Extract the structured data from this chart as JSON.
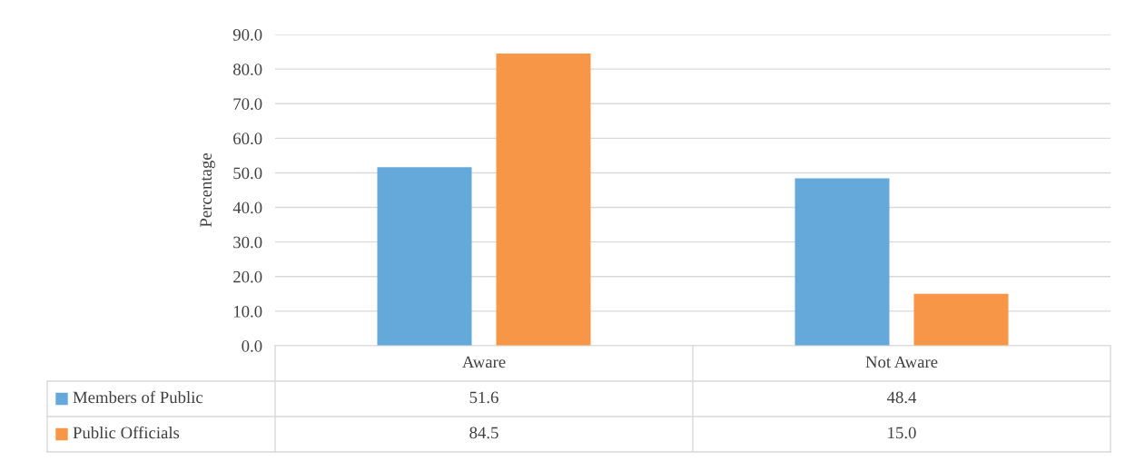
{
  "chart_data": {
    "type": "bar",
    "ylabel": "Percentage",
    "categories": [
      "Aware",
      "Not Aware"
    ],
    "series": [
      {
        "name": "Members of Public",
        "color": "#65a9db",
        "values": [
          51.6,
          48.4
        ],
        "value_labels": [
          "51.6",
          "48.4"
        ]
      },
      {
        "name": "Public Officials",
        "color": "#f79646",
        "values": [
          84.5,
          15.0
        ],
        "value_labels": [
          "84.5",
          "15.0"
        ]
      }
    ],
    "ylim": [
      0,
      90
    ],
    "yticks": [
      {
        "value": 0,
        "label": "0.0"
      },
      {
        "value": 10,
        "label": "10.0"
      },
      {
        "value": 20,
        "label": "20.0"
      },
      {
        "value": 30,
        "label": "30.0"
      },
      {
        "value": 40,
        "label": "40.0"
      },
      {
        "value": 50,
        "label": "50.0"
      },
      {
        "value": 60,
        "label": "60.0"
      },
      {
        "value": 70,
        "label": "70.0"
      },
      {
        "value": 80,
        "label": "80.0"
      },
      {
        "value": 90,
        "label": "90.0"
      }
    ],
    "grid": "y",
    "legend": "bottom"
  }
}
